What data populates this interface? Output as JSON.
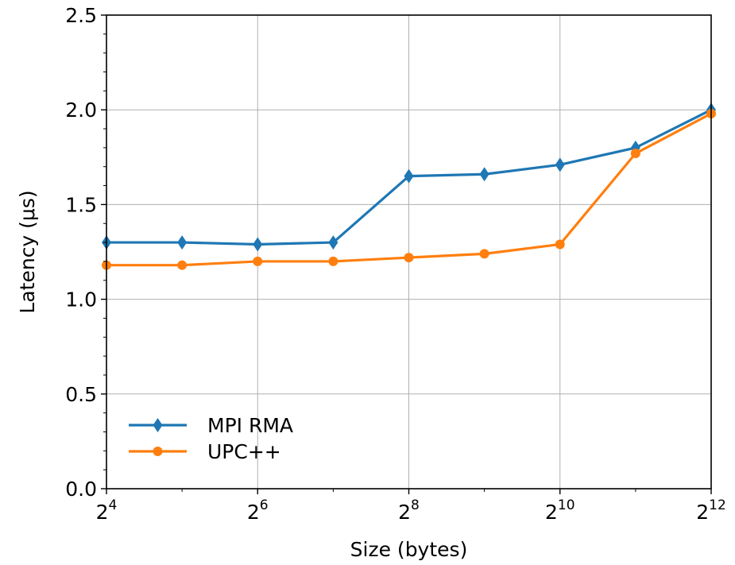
{
  "chart_data": {
    "type": "line",
    "xlabel": "Size (bytes)",
    "ylabel": "Latency (μs)",
    "x_scale": "log2",
    "x": [
      16,
      32,
      64,
      128,
      256,
      512,
      1024,
      2048,
      4096
    ],
    "xlim": [
      16,
      4096
    ],
    "xticks": [
      {
        "value": 16,
        "base": "2",
        "exp": "4"
      },
      {
        "value": 64,
        "base": "2",
        "exp": "6"
      },
      {
        "value": 256,
        "base": "2",
        "exp": "8"
      },
      {
        "value": 1024,
        "base": "2",
        "exp": "10"
      },
      {
        "value": 4096,
        "base": "2",
        "exp": "12"
      }
    ],
    "ylim": [
      0,
      2.5
    ],
    "yticks": [
      "0.0",
      "0.5",
      "1.0",
      "1.5",
      "2.0",
      "2.5"
    ],
    "grid": true,
    "legend_position": "lower-left",
    "series": [
      {
        "name": "MPI RMA",
        "color": "#1f77b4",
        "marker": "diamond",
        "values": [
          1.3,
          1.3,
          1.29,
          1.3,
          1.65,
          1.66,
          1.71,
          1.8,
          2.0
        ]
      },
      {
        "name": "UPC++",
        "color": "#ff7f0e",
        "marker": "circle",
        "values": [
          1.18,
          1.18,
          1.2,
          1.2,
          1.22,
          1.24,
          1.29,
          1.77,
          1.98
        ]
      }
    ]
  }
}
